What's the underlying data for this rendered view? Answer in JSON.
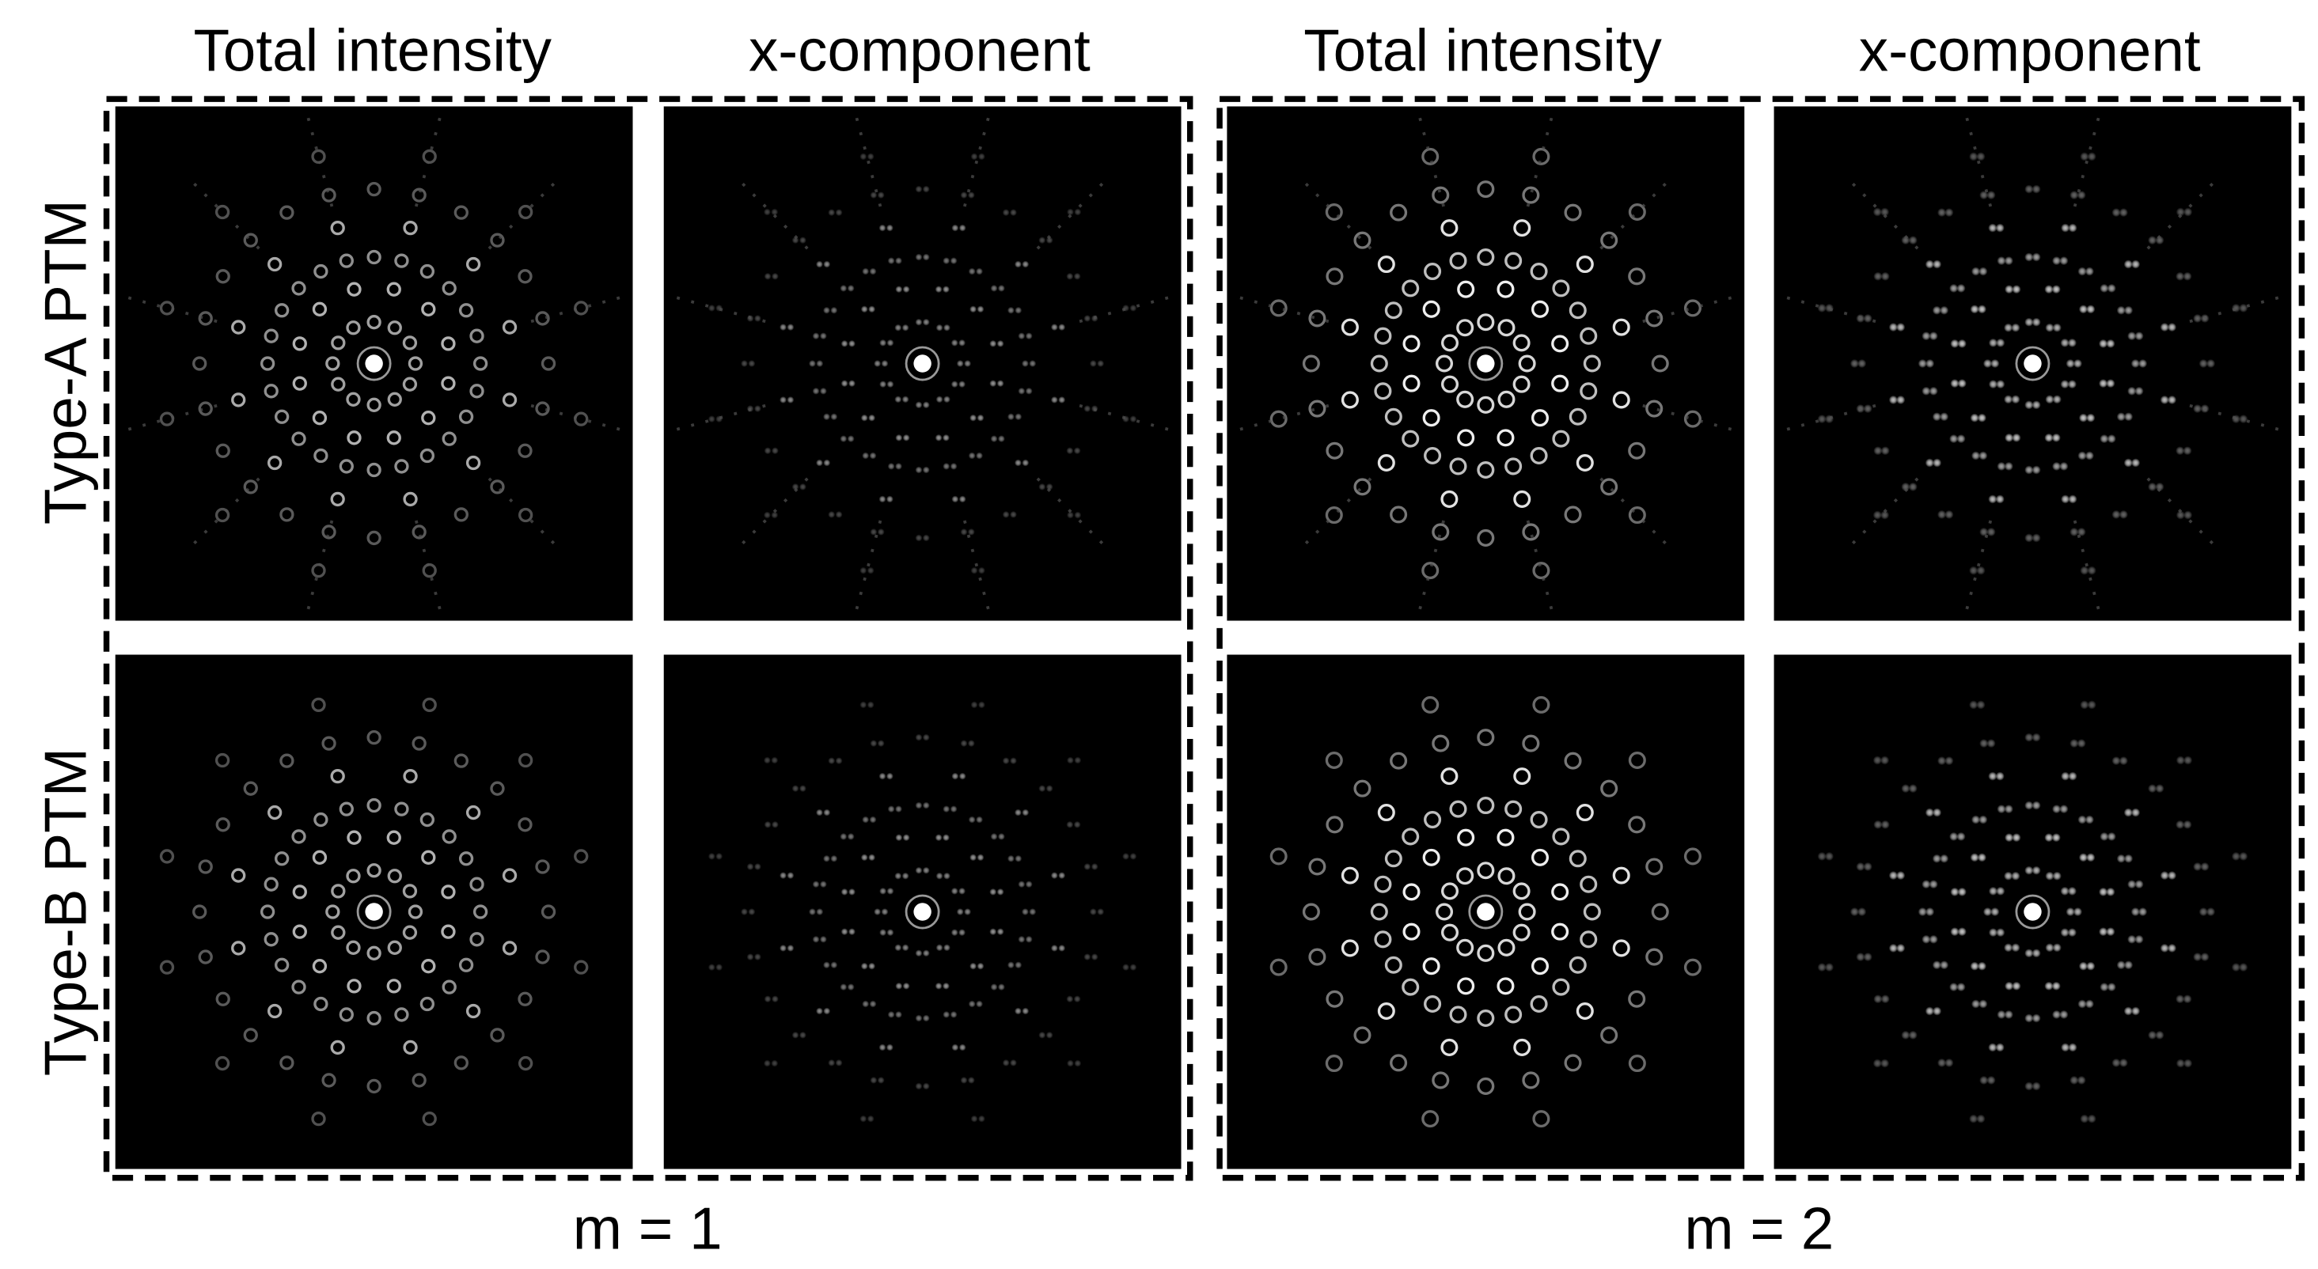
{
  "headers": [
    "Total intensity",
    "x-component",
    "Total intensity",
    "x-component"
  ],
  "row_labels": [
    "Type-A PTM",
    "Type-B PTM"
  ],
  "group_labels": [
    "m = 1",
    "m = 2"
  ]
}
